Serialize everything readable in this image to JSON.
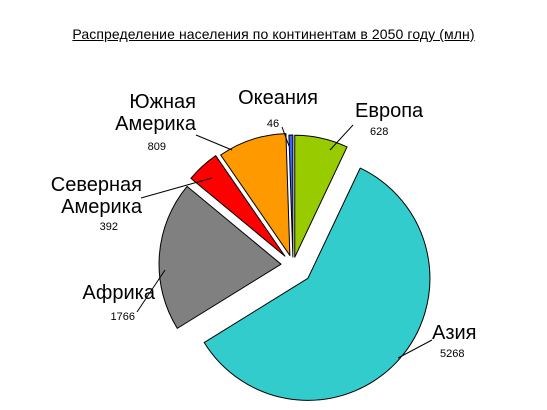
{
  "chart_data": {
    "type": "pie",
    "title": "Распределение населения по континентам в 2050 году (млн)",
    "categories": [
      "Европа",
      "Азия",
      "Африка",
      "Северная Америка",
      "Южная Америка",
      "Океания"
    ],
    "values": [
      628,
      5268,
      1766,
      392,
      809,
      46
    ],
    "value_labels": [
      "628",
      "5268",
      "1766",
      "392",
      "809",
      "46"
    ],
    "colors": [
      "#99cc00",
      "#33cccc",
      "#808080",
      "#ff0000",
      "#ff9900",
      "#3366ff"
    ],
    "exploded": true,
    "legend": "none",
    "data_labels": "category name and value, outside with leader lines"
  }
}
